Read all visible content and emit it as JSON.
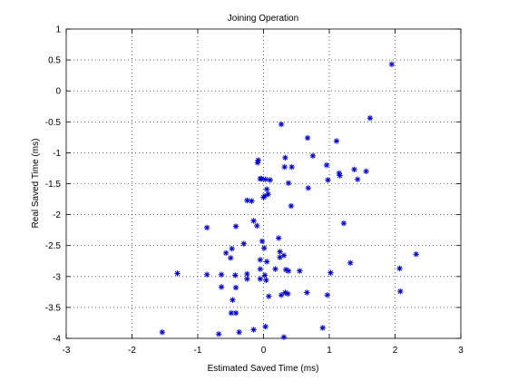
{
  "chart_data": {
    "type": "scatter",
    "title": "Joining Operation",
    "xlabel": "Estimated Saved Time (ms)",
    "ylabel": "Real Saved Time (ms)",
    "xlim": [
      -3,
      3
    ],
    "ylim": [
      -4,
      1
    ],
    "xticks": [
      "-3",
      "-2",
      "-1",
      "0",
      "1",
      "2",
      "3"
    ],
    "yticks": [
      "-4",
      "-3.5",
      "-3",
      "-2.5",
      "-2",
      "-1.5",
      "-1",
      "-0.5",
      "0",
      "0.5",
      "1"
    ],
    "xtick_values": [
      -3,
      -2,
      -1,
      0,
      1,
      2,
      3
    ],
    "ytick_values": [
      -4,
      -3.5,
      -3,
      -2.5,
      -2,
      -1.5,
      -1,
      -0.5,
      0,
      0.5,
      1
    ],
    "grid": true,
    "marker": "asterisk",
    "marker_color": "#0000cc",
    "points": [
      {
        "x": 1.95,
        "y": 0.43
      },
      {
        "x": 1.62,
        "y": -0.44
      },
      {
        "x": 0.27,
        "y": -0.54
      },
      {
        "x": 0.67,
        "y": -0.76
      },
      {
        "x": 1.11,
        "y": -0.81
      },
      {
        "x": 0.75,
        "y": -1.05
      },
      {
        "x": 0.33,
        "y": -1.08
      },
      {
        "x": -0.08,
        "y": -1.12
      },
      {
        "x": -0.09,
        "y": -1.16
      },
      {
        "x": 0.96,
        "y": -1.2
      },
      {
        "x": 0.32,
        "y": -1.23
      },
      {
        "x": 0.43,
        "y": -1.23
      },
      {
        "x": 1.38,
        "y": -1.27
      },
      {
        "x": 1.56,
        "y": -1.3
      },
      {
        "x": 1.15,
        "y": -1.33
      },
      {
        "x": 1.16,
        "y": -1.37
      },
      {
        "x": -0.05,
        "y": -1.42
      },
      {
        "x": -0.03,
        "y": -1.42
      },
      {
        "x": 0.03,
        "y": -1.43
      },
      {
        "x": 0.1,
        "y": -1.44
      },
      {
        "x": 0.98,
        "y": -1.44
      },
      {
        "x": 1.43,
        "y": -1.43
      },
      {
        "x": 0.38,
        "y": -1.49
      },
      {
        "x": 0.68,
        "y": -1.57
      },
      {
        "x": 0.05,
        "y": -1.59
      },
      {
        "x": 0.07,
        "y": -1.67
      },
      {
        "x": 0.02,
        "y": -1.7
      },
      {
        "x": 0.0,
        "y": -1.72
      },
      {
        "x": -0.25,
        "y": -1.77
      },
      {
        "x": -0.18,
        "y": -1.78
      },
      {
        "x": 0.42,
        "y": -1.86
      },
      {
        "x": -0.15,
        "y": -2.1
      },
      {
        "x": 1.22,
        "y": -2.14
      },
      {
        "x": -0.1,
        "y": -2.18
      },
      {
        "x": -0.42,
        "y": -2.19
      },
      {
        "x": -0.86,
        "y": -2.21
      },
      {
        "x": 0.23,
        "y": -2.38
      },
      {
        "x": -0.02,
        "y": -2.43
      },
      {
        "x": -0.3,
        "y": -2.47
      },
      {
        "x": 0.01,
        "y": -2.54
      },
      {
        "x": -0.48,
        "y": -2.55
      },
      {
        "x": 0.25,
        "y": -2.6
      },
      {
        "x": -0.57,
        "y": -2.62
      },
      {
        "x": 2.32,
        "y": -2.64
      },
      {
        "x": 0.31,
        "y": -2.66
      },
      {
        "x": 0.25,
        "y": -2.69
      },
      {
        "x": -0.5,
        "y": -2.7
      },
      {
        "x": -0.05,
        "y": -2.73
      },
      {
        "x": 0.05,
        "y": -2.76
      },
      {
        "x": 1.32,
        "y": -2.78
      },
      {
        "x": -0.05,
        "y": -2.88
      },
      {
        "x": 0.18,
        "y": -2.88
      },
      {
        "x": 2.07,
        "y": -2.87
      },
      {
        "x": 0.34,
        "y": -2.89
      },
      {
        "x": 0.38,
        "y": -2.91
      },
      {
        "x": 0.55,
        "y": -2.91
      },
      {
        "x": -1.31,
        "y": -2.95
      },
      {
        "x": -0.86,
        "y": -2.97
      },
      {
        "x": -0.64,
        "y": -2.97
      },
      {
        "x": -0.25,
        "y": -2.96
      },
      {
        "x": -0.43,
        "y": -2.98
      },
      {
        "x": 0.02,
        "y": -2.98
      },
      {
        "x": 1.02,
        "y": -2.94
      },
      {
        "x": -0.25,
        "y": -3.04
      },
      {
        "x": 0.04,
        "y": -3.06
      },
      {
        "x": -0.05,
        "y": -3.04
      },
      {
        "x": -0.64,
        "y": -3.17
      },
      {
        "x": -0.42,
        "y": -3.18
      },
      {
        "x": 2.08,
        "y": -3.24
      },
      {
        "x": 0.33,
        "y": -3.26
      },
      {
        "x": 0.66,
        "y": -3.26
      },
      {
        "x": 0.37,
        "y": -3.28
      },
      {
        "x": 0.27,
        "y": -3.3
      },
      {
        "x": 0.08,
        "y": -3.32
      },
      {
        "x": 0.97,
        "y": -3.3
      },
      {
        "x": -0.47,
        "y": -3.38
      },
      {
        "x": -0.49,
        "y": -3.59
      },
      {
        "x": -0.42,
        "y": -3.59
      },
      {
        "x": 0.03,
        "y": -3.81
      },
      {
        "x": 0.9,
        "y": -3.83
      },
      {
        "x": -0.15,
        "y": -3.86
      },
      {
        "x": -1.54,
        "y": -3.9
      },
      {
        "x": -0.68,
        "y": -3.93
      },
      {
        "x": 0.31,
        "y": -3.98
      },
      {
        "x": -0.37,
        "y": -3.9
      }
    ]
  }
}
